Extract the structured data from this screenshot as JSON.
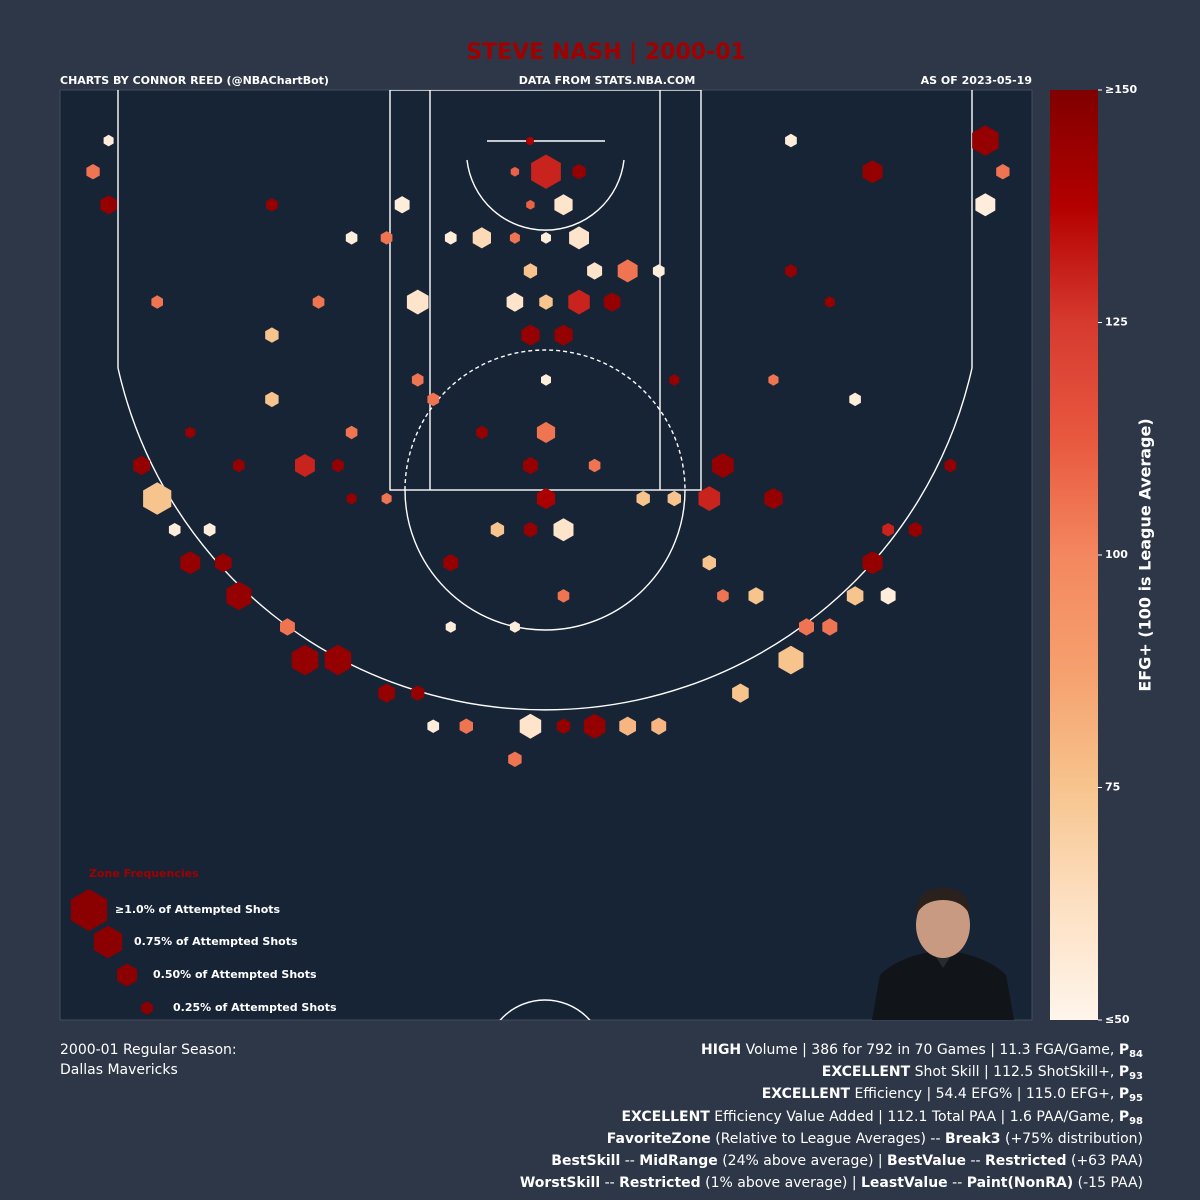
{
  "chart_data": {
    "type": "hexbin",
    "title": "STEVE NASH | 2000-01",
    "credits": [
      "CHARTS BY CONNOR REED (@NBAChartBot)",
      "DATA FROM STATS.NBA.COM",
      "AS OF 2023-05-19"
    ],
    "xlim": [
      -25,
      25
    ],
    "ylim": [
      0,
      47.8
    ],
    "x": [
      0,
      1.7,
      -1.6,
      0.9,
      -0.8,
      1.7,
      -3.3,
      0,
      -1.6,
      4.2,
      2.5,
      -0.8,
      1.7,
      3.4,
      -1.6,
      0,
      -6.6,
      -0.8,
      0.9,
      0,
      -0.8,
      0,
      0.9,
      -0.8,
      -2.5,
      -12.4,
      -20,
      -20.8,
      -18.3,
      -15.8,
      -12.4,
      -10.7,
      -8.2,
      -0.8,
      2.5,
      4.2,
      5.8,
      0.9,
      -4.1,
      -1.6,
      12.6,
      10,
      9.1,
      8.4,
      11.7,
      16.8,
      15.9,
      13.4,
      22.6,
      22.6,
      16.8,
      -22.5,
      -23.3,
      -4.9,
      5,
      6.6,
      -7.4,
      -14.1,
      -14.1,
      -10,
      -13.3,
      -16.6,
      -6.6,
      -5.8,
      17.6,
      10.8,
      14.6,
      8.4,
      19,
      17.6,
      -19.1,
      -17.3,
      -22.5,
      12.6,
      -10,
      -8.2,
      -4.9,
      12.6,
      -20,
      -11.7,
      -10,
      -8.2,
      9.1,
      15.9,
      11.7,
      -6.6,
      6.6,
      0,
      2.5,
      -3.3,
      5.8,
      -5.8,
      0.9,
      -1.6,
      -4.9,
      20.8,
      -18.3,
      -15.8,
      -10.7,
      23.5,
      -14.1,
      14.6
    ],
    "y": [
      4.2,
      4.2,
      4.2,
      5.9,
      5.9,
      7.6,
      7.6,
      7.6,
      7.6,
      9.3,
      9.3,
      9.3,
      10.9,
      10.9,
      10.9,
      10.9,
      10.9,
      12.6,
      12.6,
      17.6,
      19.3,
      21,
      22.6,
      22.6,
      22.6,
      19.3,
      21,
      19.3,
      24.3,
      26,
      29.3,
      29.3,
      31,
      32.7,
      32.7,
      32.7,
      32.7,
      32.7,
      32.7,
      34.4,
      29.3,
      31,
      19.3,
      21,
      21,
      24.3,
      26,
      27.6,
      2.6,
      5.9,
      4.2,
      5.9,
      4.2,
      24.3,
      21,
      21,
      5.9,
      12.6,
      15.9,
      17.6,
      27.6,
      24.3,
      31,
      32.7,
      26,
      26,
      27.6,
      24.3,
      22.6,
      22.6,
      22.6,
      22.6,
      2.6,
      2.6,
      7.6,
      7.6,
      7.6,
      9.3,
      10.9,
      10.9,
      21,
      21,
      26,
      15.9,
      14.9,
      14.9,
      14.9,
      14.9,
      19.3,
      17.6,
      9.3,
      15.9,
      26,
      27.6,
      27.6,
      19.3,
      17.6,
      19.3,
      19.3,
      4.2,
      5.9,
      10.9
    ],
    "values": [
      130,
      145,
      110,
      60,
      110,
      60,
      65,
      55,
      105,
      105,
      60,
      75,
      130,
      145,
      60,
      75,
      60,
      145,
      145,
      105,
      145,
      140,
      60,
      145,
      75,
      130,
      75,
      145,
      145,
      145,
      145,
      145,
      145,
      60,
      145,
      80,
      80,
      145,
      105,
      105,
      75,
      75,
      145,
      130,
      145,
      145,
      75,
      105,
      145,
      55,
      145,
      145,
      105,
      145,
      75,
      75,
      55,
      75,
      75,
      105,
      105,
      145,
      145,
      55,
      55,
      75,
      105,
      75,
      145,
      130,
      55,
      55,
      55,
      55,
      55,
      105,
      55,
      145,
      105,
      105,
      145,
      105,
      105,
      55,
      105,
      105,
      145,
      55,
      105,
      145,
      55,
      105,
      105,
      55,
      55,
      145,
      145,
      145,
      145,
      105,
      145,
      145
    ],
    "sizes": [
      0.8,
      0.3,
      0.15,
      0.45,
      0.15,
      0.5,
      0.45,
      0.2,
      0.2,
      0.5,
      0.35,
      0.3,
      0.55,
      0.4,
      0.4,
      0.3,
      0.55,
      0.45,
      0.45,
      0.45,
      0.35,
      0.45,
      0.5,
      0.3,
      0.3,
      0.5,
      0.75,
      0.4,
      0.5,
      0.65,
      0.7,
      0.7,
      0.4,
      0.55,
      0.55,
      0.4,
      0.35,
      0.3,
      0.3,
      0.3,
      0.65,
      0.4,
      0.55,
      0.55,
      0.45,
      0.5,
      0.4,
      0.35,
      0.7,
      0.5,
      0.5,
      0.4,
      0.3,
      0.35,
      0.3,
      0.3,
      0.35,
      0.3,
      0.3,
      0.25,
      0.35,
      0.4,
      0.3,
      0.25,
      0.35,
      0.35,
      0.35,
      0.3,
      0.3,
      0.25,
      0.25,
      0.25,
      0.2,
      0.25,
      0.25,
      0.25,
      0.25,
      0.25,
      0.25,
      0.25,
      0.2,
      0.2,
      0.25,
      0.25,
      0.2,
      0.25,
      0.2,
      0.2,
      0.25,
      0.25,
      0.25,
      0.25,
      0.25,
      0.2,
      0.2,
      0.25,
      0.2,
      0.25,
      0.25,
      0.3,
      0.25,
      0.2
    ],
    "colorscale": [
      "#fff5eb",
      "#fde0c2",
      "#f7c48e",
      "#f6a06e",
      "#f4875f",
      "#e8583f",
      "#d63a2f",
      "#b40000",
      "#800000"
    ],
    "clim": [
      50,
      150
    ],
    "cticks": [
      {
        "value": 50,
        "label": "≤50"
      },
      75,
      100,
      125,
      {
        "value": 150,
        "label": "≥150"
      }
    ],
    "colorbar_label": "EFG+ (100 is League Average)",
    "legend_title": "Zone Frequencies",
    "legend_color": "#8b0000",
    "legend_sizes": [
      {
        "value": 1.0,
        "label": "≥1.0% of Attempted Shots"
      },
      {
        "value": 0.75,
        "label": "0.75% of Attempted Shots"
      },
      {
        "value": 0.5,
        "label": "0.50% of Attempted Shots"
      },
      {
        "value": 0.25,
        "label": "0.25% of Attempted Shots"
      }
    ],
    "summary_left": [
      "2000-01 Regular Season:",
      "Dallas Mavericks"
    ],
    "summary_right": [
      [
        {
          "text": "HIGH",
          "style": "bold"
        },
        {
          "text": " Volume | 386 for 792 in 70 Games | 11.3 FGA/Game, "
        },
        {
          "text": "P",
          "style": "bold"
        },
        {
          "text": "84",
          "style": "sub"
        }
      ],
      [
        {
          "text": "EXCELLENT",
          "style": "bold"
        },
        {
          "text": " Shot Skill | 112.5 ShotSkill+, "
        },
        {
          "text": "P",
          "style": "bold"
        },
        {
          "text": "93",
          "style": "sub"
        }
      ],
      [
        {
          "text": "EXCELLENT",
          "style": "bold"
        },
        {
          "text": " Efficiency | 54.4 EFG% | 115.0 EFG+, "
        },
        {
          "text": "P",
          "style": "bold"
        },
        {
          "text": "95",
          "style": "sub"
        }
      ],
      [
        {
          "text": "EXCELLENT",
          "style": "bold"
        },
        {
          "text": " Efficiency Value Added | 112.1 Total PAA | 1.6 PAA/Game, "
        },
        {
          "text": "P",
          "style": "bold"
        },
        {
          "text": "98",
          "style": "sub"
        }
      ],
      [
        {
          "text": "FavoriteZone",
          "style": "bold"
        },
        {
          "text": " (Relative to League Averages) -- "
        },
        {
          "text": "Break3",
          "style": "bold"
        },
        {
          "text": " (+75% distribution)"
        }
      ],
      [
        {
          "text": "BestSkill",
          "style": "bold"
        },
        {
          "text": " -- "
        },
        {
          "text": "MidRange",
          "style": "bold"
        },
        {
          "text": " (24% above average) | "
        },
        {
          "text": "BestValue",
          "style": "bold"
        },
        {
          "text": " -- "
        },
        {
          "text": "Restricted",
          "style": "bold"
        },
        {
          "text": " (+63 PAA)"
        }
      ],
      [
        {
          "text": "WorstSkill",
          "style": "bold"
        },
        {
          "text": " -- "
        },
        {
          "text": "Restricted",
          "style": "bold"
        },
        {
          "text": " (1% above average) | "
        },
        {
          "text": "LeastValue",
          "style": "bold"
        },
        {
          "text": " -- "
        },
        {
          "text": "Paint(NonRA)",
          "style": "bold"
        },
        {
          "text": " (-15 PAA)"
        }
      ]
    ]
  }
}
